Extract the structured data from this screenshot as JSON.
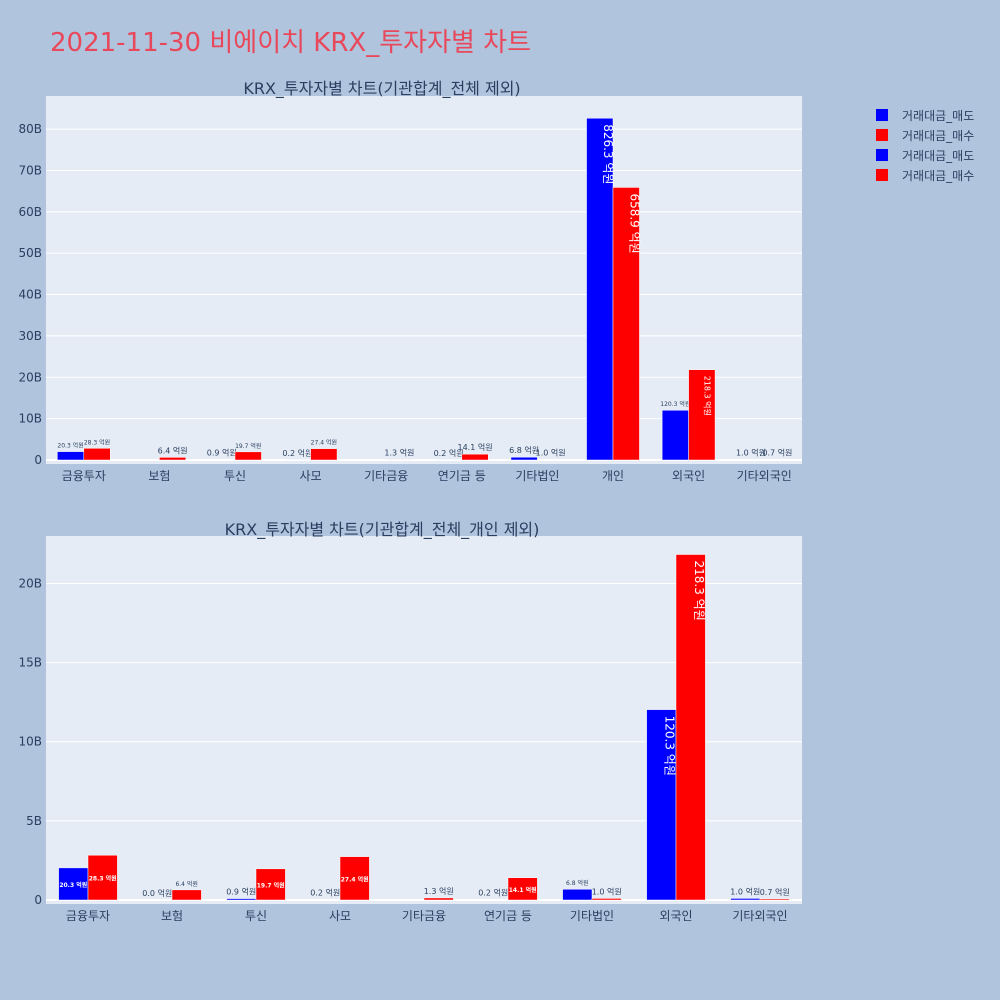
{
  "page_title": "2021-11-30 비에이치 KRX_투자자별 차트",
  "colors": {
    "sell": "#0000ff",
    "buy": "#ff0000",
    "plot_bg": "#e5ecf6",
    "page_bg": "#b0c4de"
  },
  "legend": [
    {
      "name": "거래대금_매도",
      "color": "#0000ff"
    },
    {
      "name": "거래대금_매수",
      "color": "#ff0000"
    },
    {
      "name": "거래대금_매도",
      "color": "#0000ff"
    },
    {
      "name": "거래대금_매수",
      "color": "#ff0000"
    }
  ],
  "chart_data": [
    {
      "type": "bar",
      "title": "KRX_투자자별 차트(기관합계_전체 제외)",
      "categories": [
        "금융투자",
        "보험",
        "투신",
        "사모",
        "기타금융",
        "연기금 등",
        "기타법인",
        "개인",
        "외국인",
        "기타외국인"
      ],
      "series": [
        {
          "name": "거래대금_매도",
          "color": "#0000ff",
          "values": [
            2030000000,
            0,
            90000000,
            20000000,
            0,
            20000000,
            680000000,
            82630000000,
            12030000000,
            100000000
          ],
          "labels": [
            "20.3 억원",
            "",
            "0.9 억원",
            "0.2 억원",
            "",
            "0.2 억원",
            "6.8 억원",
            "826.3 억원",
            "120.3 억원",
            "1.0 억원"
          ]
        },
        {
          "name": "거래대금_매수",
          "color": "#ff0000",
          "values": [
            2830000000,
            640000000,
            1970000000,
            2740000000,
            130000000,
            1410000000,
            100000000,
            65890000000,
            21830000000,
            70000000
          ],
          "labels": [
            "28.3 억원",
            "6.4 억원",
            "19.7 억원",
            "27.4 억원",
            "1.3 억원",
            "14.1 억원",
            "1.0 억원",
            "658.9 억원",
            "218.3 억원",
            "0.7 억원"
          ]
        }
      ],
      "yticks": [
        "0",
        "10B",
        "20B",
        "30B",
        "40B",
        "50B",
        "60B",
        "70B",
        "80B"
      ],
      "ylim": [
        0,
        88000000000
      ],
      "grid": true,
      "legend_position": "top-right"
    },
    {
      "type": "bar",
      "title": "KRX_투자자별 차트(기관합계_전체_개인 제외)",
      "categories": [
        "금융투자",
        "보험",
        "투신",
        "사모",
        "기타금융",
        "연기금 등",
        "기타법인",
        "외국인",
        "기타외국인"
      ],
      "series": [
        {
          "name": "거래대금_매도",
          "color": "#0000ff",
          "values": [
            2030000000,
            0,
            90000000,
            20000000,
            0,
            20000000,
            680000000,
            12030000000,
            100000000
          ],
          "labels": [
            "20.3 억원",
            "0.0 억원",
            "0.9 억원",
            "0.2 억원",
            "",
            "0.2 억원",
            "6.8 억원",
            "120.3 억원",
            "1.0 억원"
          ]
        },
        {
          "name": "거래대금_매수",
          "color": "#ff0000",
          "values": [
            2830000000,
            640000000,
            1970000000,
            2740000000,
            130000000,
            1410000000,
            100000000,
            21830000000,
            70000000
          ],
          "labels": [
            "28.3 억원",
            "6.4 억원",
            "19.7 억원",
            "27.4 억원",
            "1.3 억원",
            "14.1 억원",
            "1.0 억원",
            "218.3 억원",
            "0.7 억원"
          ]
        }
      ],
      "yticks": [
        "0",
        "5B",
        "10B",
        "15B",
        "20B"
      ],
      "ylim": [
        0,
        23000000000
      ],
      "grid": true
    }
  ]
}
